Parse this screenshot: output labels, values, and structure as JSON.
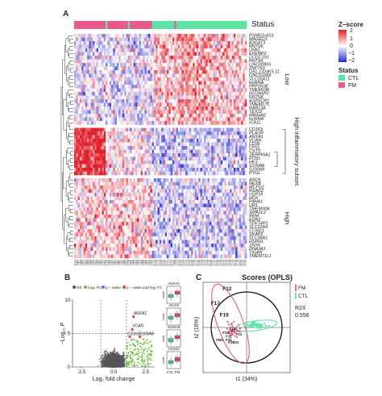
{
  "figure": {
    "panel_labels": [
      "A",
      "B",
      "C"
    ],
    "panel_title_c": "Scores (OPLS)"
  },
  "heatmap": {
    "status_header": "Status",
    "legend": {
      "zscore_title": "Z−score",
      "zscore_ticks": [
        "2",
        "1",
        "0",
        "−1",
        "−2"
      ],
      "status_title": "Status",
      "status_items": [
        {
          "label": "CTL",
          "color": "#5ee3a5"
        },
        {
          "label": "FM",
          "color": "#e85a8c"
        }
      ]
    },
    "colors": {
      "high": "#e0202a",
      "mid": "#ffffff",
      "low": "#2a2acf",
      "ctl": "#5ee3a5",
      "fm": "#e85a8c"
    },
    "status_sequence": [
      "FM",
      "FM",
      "FM",
      "FM",
      "FM",
      "FM",
      "FM",
      "FM",
      "FM",
      "FM",
      "FM",
      "FM",
      "FM",
      "FM",
      "FM",
      "FM",
      "FM",
      "CTL",
      "FM",
      "FM",
      "FM",
      "FM",
      "FM",
      "FM",
      "FM",
      "FM",
      "FM",
      "FM",
      "FM",
      "CTL",
      "FM",
      "FM",
      "FM",
      "FM",
      "FM",
      "FM",
      "FM",
      "FM",
      "FM",
      "FM",
      "FM",
      "FM",
      "CTL",
      "CTL",
      "CTL",
      "CTL",
      "CTL",
      "CTL",
      "CTL",
      "CTL",
      "CTL",
      "CTL",
      "CTL",
      "CTL",
      "FM",
      "CTL",
      "CTL",
      "CTL",
      "CTL",
      "CTL",
      "CTL",
      "CTL",
      "CTL",
      "CTL",
      "CTL",
      "CTL",
      "CTL",
      "CTL",
      "CTL",
      "CTL",
      "CTL",
      "CTL",
      "CTL",
      "CTL",
      "CTL",
      "CTL",
      "CTL",
      "CTL",
      "CTL",
      "CTL",
      "CTL",
      "CTL",
      "CTL",
      "CTL",
      "CTL",
      "CTL",
      "CTL",
      "CTL",
      "CTL",
      "CTL",
      "CTL",
      "CTL",
      "CTL"
    ],
    "groups": [
      {
        "label": "Low",
        "genes": [
          "PSMG3-AS1",
          "MAGED1",
          "B3GAT3",
          "RN7SK",
          "UNKL",
          "EFEMP2",
          "CCDC191",
          "RN7SK",
          "LINC00865",
          "ZNF763",
          "Q51-1324K5.11",
          "LINC01089",
          "SLC35A11",
          "lncRNA",
          "PPP1R3E",
          "TMEM198",
          "NSUN6P2",
          "RN7SK",
          "ASPSCR1",
          "TMEM175",
          "RAB13A",
          "TEX22",
          "MB44AE",
          "lncRNA",
          "ICA1L"
        ]
      },
      {
        "label": "High inflammatory subset",
        "genes": [
          "CD163",
          "PLAUR",
          "ANXA1",
          "VCAN",
          "CD36",
          "CPVL",
          "CST3",
          "SERPINA1",
          "FCN1",
          "HK3",
          "S100A8",
          "S100A9",
          "PYGL"
        ]
      },
      {
        "label": "High",
        "genes": [
          "ANO6",
          "NEXB",
          "MCFD2",
          "RSAD2",
          "USP18",
          "HDX",
          "P4HA1",
          "UR1",
          "TMEM30A",
          "SIPA1L2",
          "RRM",
          "EDR2",
          "TEKT4P2",
          "SLC22A4",
          "CCNG1",
          "SKAP2",
          "SLC38A1",
          "HSPH1",
          "SNX6",
          "DNAJA1",
          "TIGAR",
          "TMEM71L1"
        ]
      }
    ],
    "sample_ids": [
      "CTL14",
      "FM04",
      "FM17",
      "FM08",
      "FM01",
      "FM15",
      "FM22",
      "FM24",
      "FM29",
      "FM06",
      "FM02",
      "FM11",
      "FM18",
      "FM21",
      "FM27",
      "FM09",
      "FM12",
      "CTL03",
      "FM03",
      "FM05",
      "FM07",
      "FM10",
      "FM13",
      "FM14",
      "FM16",
      "FM19",
      "FM20",
      "FM23",
      "FM25",
      "CTL09",
      "FM26",
      "FM28",
      "FM30",
      "FM31",
      "FM32",
      "FM33",
      "FM34",
      "FM35",
      "FM36",
      "FM37",
      "FM38",
      "FM39",
      "CTL01",
      "CTL02",
      "CTL04",
      "CTL05",
      "CTL06",
      "CTL07",
      "CTL08",
      "CTL10",
      "CTL11",
      "CTL12",
      "CTL13",
      "CTL15",
      "FM40",
      "CTL16",
      "CTL17",
      "CTL18",
      "CTL19",
      "CTL20",
      "CTL21",
      "CTL22",
      "CTL23",
      "CTL24",
      "CTL25",
      "CTL26",
      "CTL27",
      "CTL28",
      "CTL29",
      "CTL30",
      "CTL31",
      "CTL32",
      "CTL33",
      "CTL34",
      "CTL35",
      "CTL36",
      "CTL37",
      "CTL38",
      "CTL39",
      "CTL40",
      "CTL41",
      "CTL42",
      "CTL43",
      "CTL44",
      "CTL45",
      "CTL46",
      "CTL47",
      "CTL48",
      "CTL49",
      "CTL50",
      "CTL51",
      "CTL52",
      "CTL53"
    ]
  },
  "chart_data": [
    {
      "type": "scatter",
      "panel": "B",
      "legend": [
        {
          "label": "NS",
          "color": "#555555"
        },
        {
          "label": "Log₂ FC",
          "color": "#6dbf3a"
        },
        {
          "label": "p − value",
          "color": "#3f7fd0"
        },
        {
          "label": "p − value and log₂ FC",
          "color": "#d44a4a"
        }
      ],
      "xlabel": "Log₂ fold change",
      "ylabel": "−Log₁₀ P",
      "xlim": [
        -3.2,
        3.2
      ],
      "ylim": [
        0,
        10
      ],
      "xticks": [
        "-2.5",
        "0.0",
        "2.5"
      ],
      "yticks": [
        "0",
        "5",
        "10"
      ],
      "fc_threshold": 1,
      "p_threshold": 5,
      "labeled_points": [
        {
          "label": "ANXA1",
          "x": 1.55,
          "y": 7.5
        },
        {
          "label": "VCAN",
          "x": 1.45,
          "y": 5.6
        },
        {
          "label": "CD163",
          "x": 1.25,
          "y": 4.5
        },
        {
          "label": "S100A8",
          "x": 2.05,
          "y": 4.5
        }
      ]
    },
    {
      "type": "box",
      "panel": "B-inset",
      "ylabel": "count",
      "categories": [
        "CTL",
        "FM"
      ],
      "colors": [
        "#5ee3a5",
        "#e85a8c"
      ],
      "panels": [
        {
          "gene": "ANXA1",
          "ctl": {
            "q1": 0.35,
            "median": 0.45,
            "q3": 0.55
          },
          "fm": {
            "q1": 0.55,
            "median": 0.65,
            "q3": 0.75
          }
        },
        {
          "gene": "VCAN",
          "ctl": {
            "q1": 0.35,
            "median": 0.45,
            "q3": 0.55
          },
          "fm": {
            "q1": 0.5,
            "median": 0.62,
            "q3": 0.72
          }
        },
        {
          "gene": "S100A8",
          "ctl": {
            "q1": 0.3,
            "median": 0.4,
            "q3": 0.52
          },
          "fm": {
            "q1": 0.5,
            "median": 0.6,
            "q3": 0.7
          }
        },
        {
          "gene": "CD163",
          "ctl": {
            "q1": 0.3,
            "median": 0.4,
            "q3": 0.5
          },
          "fm": {
            "q1": 0.45,
            "median": 0.58,
            "q3": 0.7
          }
        }
      ]
    },
    {
      "type": "scatter",
      "panel": "C",
      "title": "Scores (OPLS)",
      "xlabel": "t1 (34%)",
      "ylabel": "t2 (16%)",
      "legend": [
        {
          "label": "FM",
          "color": "#e85a8c"
        },
        {
          "label": "CTL",
          "color": "#5ee3a5"
        }
      ],
      "annotation": [
        "R2X",
        "0.556"
      ],
      "point_labels": [
        "F12",
        "F17",
        "F18",
        "F27",
        "F36",
        "F27",
        "F21",
        "F11",
        "FM2",
        "F41",
        "F20",
        "F22"
      ],
      "xlim": [
        -1,
        1
      ],
      "ylim": [
        -1,
        1
      ]
    }
  ]
}
